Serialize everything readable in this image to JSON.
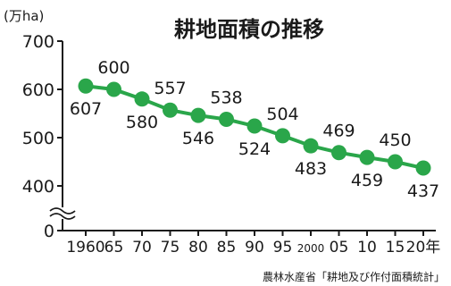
{
  "chart_data": {
    "type": "line",
    "title": "耕地面積の推移",
    "ylabel": "(万ha)",
    "x": [
      "1960",
      "65",
      "70",
      "75",
      "80",
      "85",
      "90",
      "95",
      "2000",
      "05",
      "10",
      "15",
      "20年"
    ],
    "series": [
      {
        "values": [
          607,
          600,
          580,
          557,
          546,
          538,
          524,
          504,
          483,
          469,
          459,
          450,
          437
        ]
      }
    ],
    "yticks": [
      0,
      400,
      500,
      600,
      700
    ],
    "ylim": [
      0,
      700
    ],
    "axis_break": true,
    "grid": false,
    "source": "農林水産省「耕地及び作付面積統計」",
    "colors": {
      "line": "#2aa64a",
      "marker": "#2aa64a",
      "axis": "#1a1a1a"
    }
  }
}
